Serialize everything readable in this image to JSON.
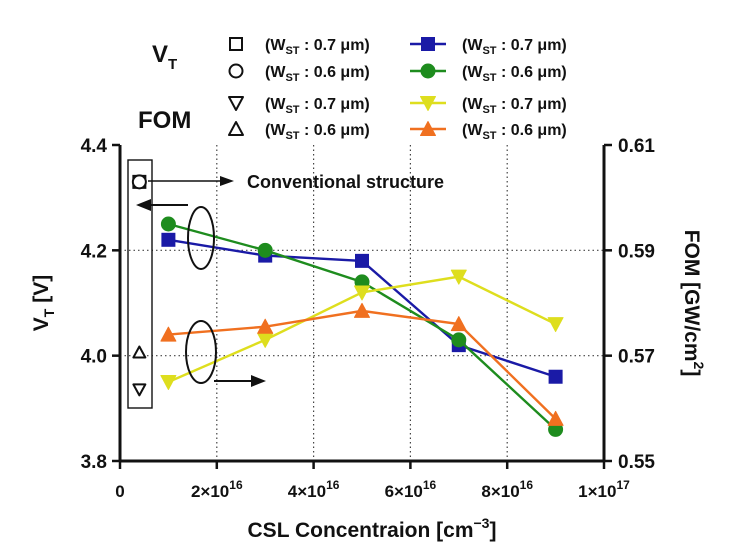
{
  "chart_data": {
    "type": "line",
    "xlabel": "CSL Concentraion [cm",
    "xlabel_sup": "−3",
    "xlabel_close": "]",
    "ylabel_left": {
      "main": "V",
      "sub": "T",
      "unit": " [V]"
    },
    "ylabel_right": {
      "main": "FOM [GW/cm",
      "sup": "2",
      "close": "]"
    },
    "xlim": [
      0,
      1e+17
    ],
    "ylim_left": [
      3.8,
      4.4
    ],
    "ylim_right": [
      0.55,
      0.61
    ],
    "x_ticks": [
      {
        "value": 0,
        "label": "0",
        "exp": ""
      },
      {
        "value": 2e+16,
        "label": "2×10",
        "exp": "16"
      },
      {
        "value": 4e+16,
        "label": "4×10",
        "exp": "16"
      },
      {
        "value": 6e+16,
        "label": "6×10",
        "exp": "16"
      },
      {
        "value": 8e+16,
        "label": "8×10",
        "exp": "16"
      },
      {
        "value": 1e+17,
        "label": "1×10",
        "exp": "17"
      }
    ],
    "y_ticks_left": [
      {
        "value": 3.8,
        "label": "3.8"
      },
      {
        "value": 4.0,
        "label": "4.0"
      },
      {
        "value": 4.2,
        "label": "4.2"
      },
      {
        "value": 4.4,
        "label": "4.4"
      }
    ],
    "y_ticks_right": [
      {
        "value": 0.55,
        "label": "0.55"
      },
      {
        "value": 0.57,
        "label": "0.57"
      },
      {
        "value": 0.59,
        "label": "0.59"
      },
      {
        "value": 0.61,
        "label": "0.61"
      }
    ],
    "grid": "dotted",
    "legend_groups": [
      {
        "text": "V",
        "sub": "T"
      },
      {
        "text": "FOM",
        "sub": ""
      }
    ],
    "series": [
      {
        "name": "(W",
        "name_sub": "ST",
        "name_rest": " : 0.7 μm)",
        "group": "VT",
        "axis": "left",
        "marker": "square",
        "color": "#1a1aa6",
        "x": [
          1e+16,
          3e+16,
          5e+16,
          7e+16,
          9e+16
        ],
        "y": [
          4.22,
          4.19,
          4.18,
          4.02,
          3.96
        ]
      },
      {
        "name": "(W",
        "name_sub": "ST",
        "name_rest": " : 0.6 μm)",
        "group": "VT",
        "axis": "left",
        "marker": "circle",
        "color": "#1e8c1e",
        "x": [
          1e+16,
          3e+16,
          5e+16,
          7e+16,
          9e+16
        ],
        "y": [
          4.25,
          4.2,
          4.14,
          4.03,
          3.86
        ]
      },
      {
        "name": "(W",
        "name_sub": "ST",
        "name_rest": " : 0.7 μm)",
        "group": "FOM",
        "axis": "right",
        "marker": "triangle-down",
        "color": "#dede1e",
        "x": [
          1e+16,
          3e+16,
          5e+16,
          7e+16,
          9e+16
        ],
        "y": [
          0.565,
          0.573,
          0.582,
          0.585,
          0.576
        ]
      },
      {
        "name": "(W",
        "name_sub": "ST",
        "name_rest": " : 0.6 μm)",
        "group": "FOM",
        "axis": "right",
        "marker": "triangle-up",
        "color": "#f07020",
        "x": [
          1e+16,
          3e+16,
          5e+16,
          7e+16,
          9e+16
        ],
        "y": [
          0.574,
          0.5755,
          0.5785,
          0.576,
          0.558
        ]
      }
    ],
    "conventional": {
      "label": "Conventional structure",
      "x": 4000000000000000.0,
      "vt_07": 4.33,
      "vt_06": 4.33,
      "fom_07": 0.5636,
      "fom_06": 0.5706
    }
  }
}
